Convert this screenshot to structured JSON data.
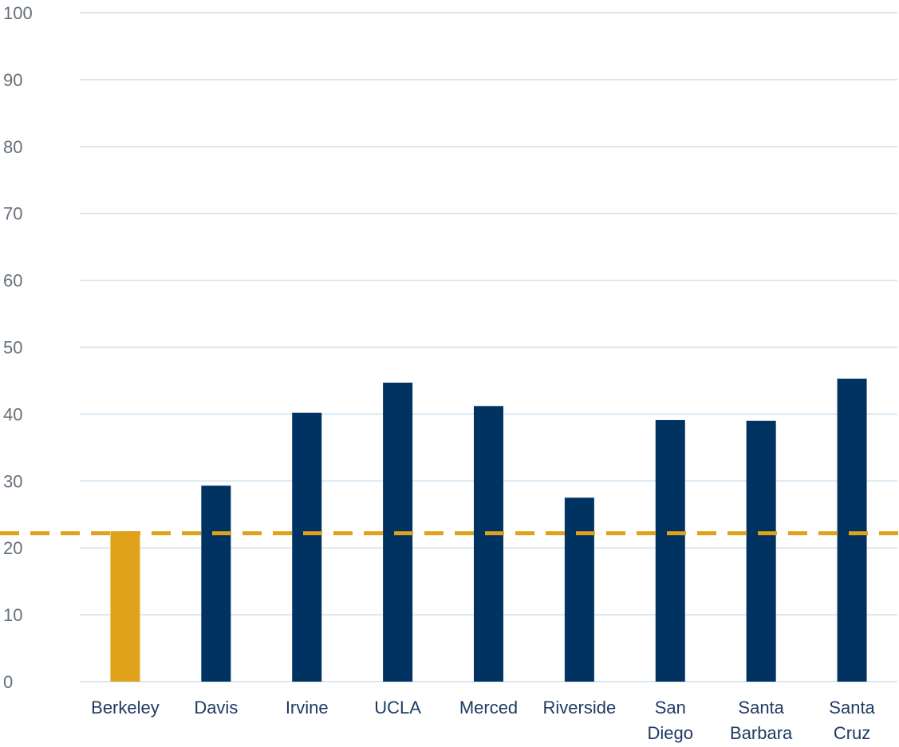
{
  "chart_data": {
    "type": "bar",
    "title": "",
    "xlabel": "",
    "ylabel": "",
    "ylim": [
      0,
      100
    ],
    "yticks": [
      0,
      10,
      20,
      30,
      40,
      50,
      60,
      70,
      80,
      90,
      100
    ],
    "grid": true,
    "categories": [
      [
        "Berkeley"
      ],
      [
        "Davis"
      ],
      [
        "Irvine"
      ],
      [
        "UCLA"
      ],
      [
        "Merced"
      ],
      [
        "Riverside"
      ],
      [
        "San",
        "Diego"
      ],
      [
        "Santa",
        "Barbara"
      ],
      [
        "Santa",
        "Cruz"
      ]
    ],
    "values": [
      22.5,
      29.3,
      40.2,
      44.7,
      41.2,
      27.5,
      39.1,
      39.0,
      45.3
    ],
    "highlight_index": 0,
    "reference_line": 22.2,
    "colors": {
      "bar": "#003262",
      "highlight": "#e0a11b",
      "reference_line": "#e0a11b",
      "grid": "#cde0ef",
      "tick_text": "#66707a",
      "category_text": "#1f3b63"
    }
  }
}
